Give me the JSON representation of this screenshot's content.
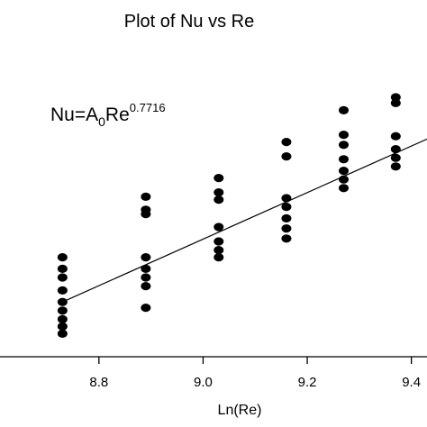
{
  "chart_data": {
    "type": "scatter",
    "title": "Plot of Nu vs Re",
    "xlabel": "Ln(Re)",
    "ylabel": "",
    "xlim": [
      8.61,
      9.43
    ],
    "ylim": [
      0,
      10
    ],
    "x_ticks": [
      8.8,
      9.0,
      9.2,
      9.4
    ],
    "x_tick_labels": [
      "8.8",
      "9.0",
      "9.2",
      "9.4"
    ],
    "grid": false,
    "legend": "none",
    "annotation": {
      "base": "Nu=A",
      "subscript": "0",
      "mid": "Re",
      "superscript": "0.7716"
    },
    "colors": {
      "points": "#000000",
      "line": "#000000",
      "axis": "#000000"
    },
    "series": [
      {
        "points": [
          [
            8.73,
            3.45
          ],
          [
            8.73,
            3.05
          ],
          [
            8.73,
            2.75
          ],
          [
            8.73,
            2.3
          ],
          [
            8.73,
            1.9
          ],
          [
            8.73,
            1.6
          ],
          [
            8.73,
            1.3
          ],
          [
            8.73,
            1.05
          ],
          [
            8.73,
            0.8
          ],
          [
            8.89,
            5.55
          ],
          [
            8.89,
            5.1
          ],
          [
            8.89,
            4.95
          ],
          [
            8.89,
            3.45
          ],
          [
            8.89,
            3.05
          ],
          [
            8.89,
            2.75
          ],
          [
            8.89,
            2.45
          ],
          [
            8.89,
            1.7
          ],
          [
            9.03,
            6.2
          ],
          [
            9.03,
            5.7
          ],
          [
            9.03,
            5.45
          ],
          [
            9.03,
            4.5
          ],
          [
            9.03,
            4.0
          ],
          [
            9.03,
            3.7
          ],
          [
            9.03,
            3.45
          ],
          [
            9.16,
            7.45
          ],
          [
            9.16,
            6.95
          ],
          [
            9.16,
            5.5
          ],
          [
            9.16,
            5.2
          ],
          [
            9.16,
            4.8
          ],
          [
            9.16,
            4.45
          ],
          [
            9.16,
            4.1
          ],
          [
            9.27,
            8.55
          ],
          [
            9.27,
            7.7
          ],
          [
            9.27,
            7.35
          ],
          [
            9.27,
            6.85
          ],
          [
            9.27,
            6.45
          ],
          [
            9.27,
            6.15
          ],
          [
            9.27,
            5.85
          ],
          [
            9.37,
            9.0
          ],
          [
            9.37,
            8.8
          ],
          [
            9.37,
            7.65
          ],
          [
            9.37,
            7.2
          ],
          [
            9.37,
            6.9
          ],
          [
            9.37,
            6.6
          ]
        ]
      }
    ],
    "fit_line": {
      "x": [
        8.73,
        9.43
      ],
      "y": [
        1.9,
        7.55
      ]
    }
  }
}
